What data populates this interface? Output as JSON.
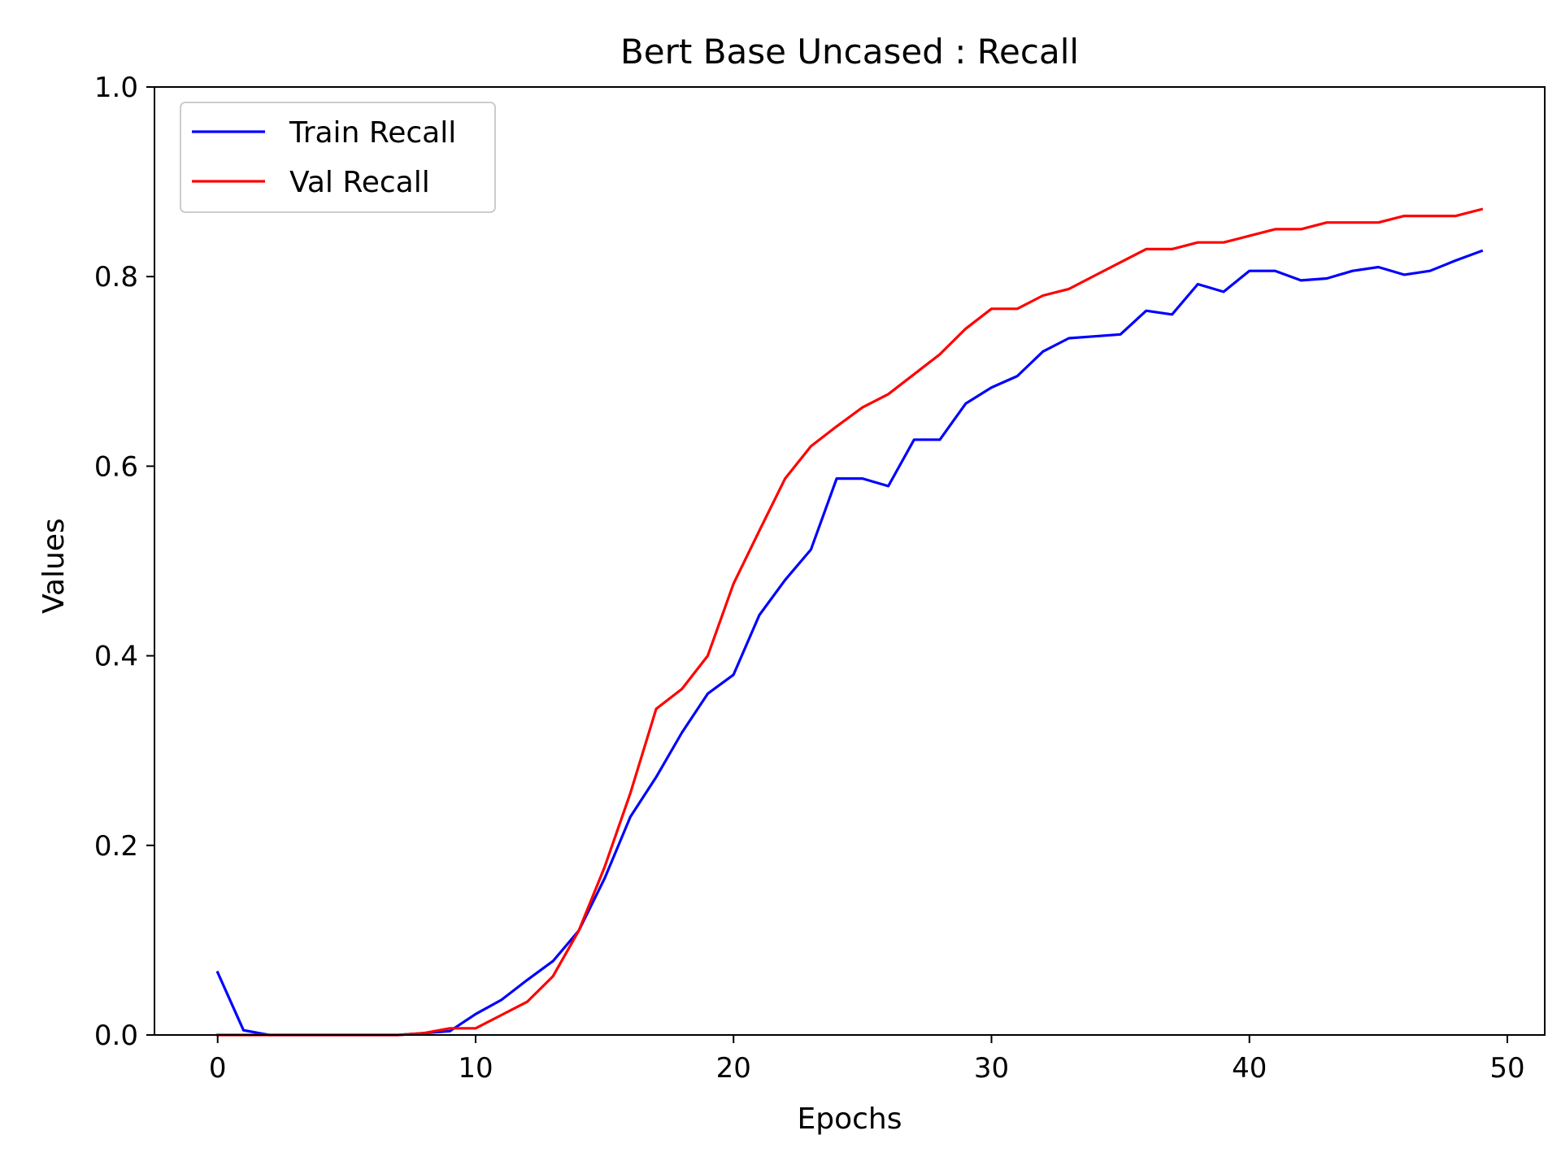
{
  "chart_data": {
    "type": "line",
    "title": "Bert Base Uncased : Recall",
    "xlabel": "Epochs",
    "ylabel": "Values",
    "xlim": [
      -2.45,
      51.45
    ],
    "ylim": [
      0,
      1.0
    ],
    "grid": false,
    "legend_position": "upper-left",
    "xticks": [
      0,
      10,
      20,
      30,
      40,
      50
    ],
    "xtick_labels": [
      "0",
      "10",
      "20",
      "30",
      "40",
      "50"
    ],
    "yticks": [
      0,
      0.2,
      0.4,
      0.6,
      0.8,
      1.0
    ],
    "ytick_labels": [
      "0.0",
      "0.2",
      "0.4",
      "0.6",
      "0.8",
      "1.0"
    ],
    "x": [
      0,
      1,
      2,
      3,
      4,
      5,
      6,
      7,
      8,
      9,
      10,
      11,
      12,
      13,
      14,
      15,
      16,
      17,
      18,
      19,
      20,
      21,
      22,
      23,
      24,
      25,
      26,
      27,
      28,
      29,
      30,
      31,
      32,
      33,
      34,
      35,
      36,
      37,
      38,
      39,
      40,
      41,
      42,
      43,
      44,
      45,
      46,
      47,
      48,
      49
    ],
    "series": [
      {
        "name": "Train Recall",
        "color": "#0000ff",
        "values": [
          0.066,
          0.005,
          0.0,
          0.0,
          0.0,
          0.0,
          0.0,
          0.0,
          0.002,
          0.004,
          0.022,
          0.037,
          0.058,
          0.078,
          0.11,
          0.165,
          0.23,
          0.272,
          0.319,
          0.36,
          0.38,
          0.443,
          0.48,
          0.512,
          0.587,
          0.587,
          0.579,
          0.628,
          0.628,
          0.666,
          0.683,
          0.695,
          0.721,
          0.735,
          0.737,
          0.739,
          0.764,
          0.76,
          0.792,
          0.784,
          0.806,
          0.806,
          0.796,
          0.798,
          0.806,
          0.81,
          0.802,
          0.806,
          0.817,
          0.827
        ]
      },
      {
        "name": "Val Recall",
        "color": "#ff0000",
        "values": [
          0.0,
          0.0,
          0.0,
          0.0,
          0.0,
          0.0,
          0.0,
          0.0,
          0.002,
          0.007,
          0.007,
          0.021,
          0.035,
          0.062,
          0.11,
          0.177,
          0.255,
          0.344,
          0.365,
          0.4,
          0.476,
          0.532,
          0.587,
          0.621,
          0.642,
          0.662,
          0.676,
          0.697,
          0.718,
          0.745,
          0.766,
          0.766,
          0.78,
          0.787,
          0.801,
          0.815,
          0.829,
          0.829,
          0.836,
          0.836,
          0.843,
          0.85,
          0.85,
          0.857,
          0.857,
          0.857,
          0.864,
          0.864,
          0.864,
          0.871
        ]
      }
    ]
  }
}
